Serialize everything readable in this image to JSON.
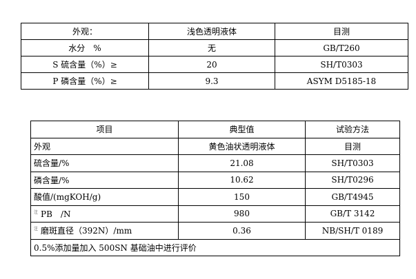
{
  "table1": {
    "rows": [
      [
        "外观：",
        "浅色透明液体",
        "目测"
      ],
      [
        "水分　%",
        "无",
        "GB/T260"
      ],
      [
        "S 硫含量（%）≥",
        "20",
        "SH/T0303"
      ],
      [
        "P 磷含量（%）≥",
        "9.3",
        "ASYM D5185-18"
      ]
    ]
  },
  "table2": {
    "header": [
      "项目",
      "典型值",
      "试验方法"
    ],
    "rows": [
      [
        "外观",
        "黄色油状透明液体",
        "目测"
      ],
      [
        "硫含量/%",
        "21.08",
        "SH/T0303"
      ],
      [
        "磷含量/%",
        "10.62",
        "SH/T0296"
      ],
      [
        "酸值/(mgKOH/g)",
        "150",
        "GB/T4945"
      ],
      [
        "PB　/N",
        "980",
        "GB/T 3142"
      ],
      [
        "磨斑直径（392N）/mm",
        "0.36",
        "NB/SH/T 0189"
      ]
    ],
    "note_mark": "注",
    "footnote": "0.5%添加量加入 500SN 基础油中进行评价"
  }
}
